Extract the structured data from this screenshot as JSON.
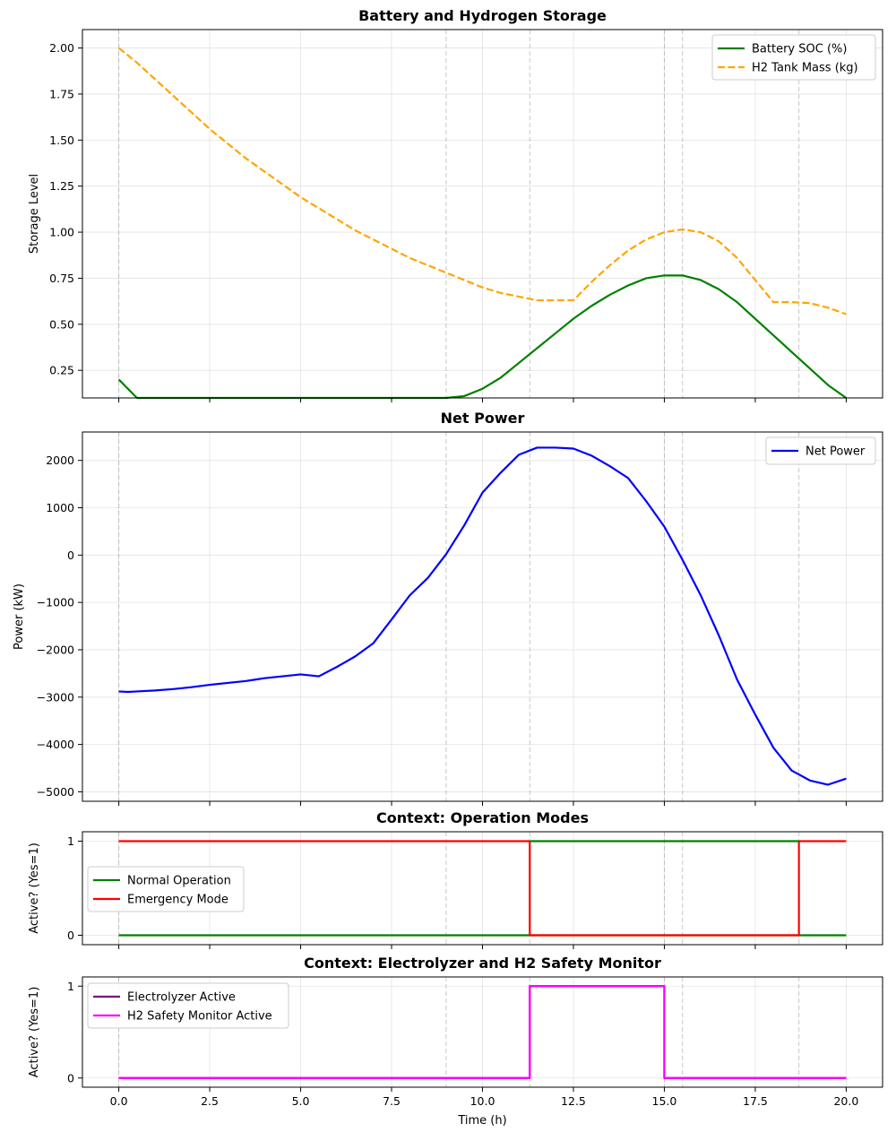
{
  "chart_data": [
    {
      "type": "line",
      "title": "Battery and Hydrogen Storage",
      "xlabel": "",
      "ylabel": "Storage Level",
      "xlim": [
        -1,
        21
      ],
      "ylim": [
        0.1,
        2.1
      ],
      "xticks": [
        0,
        2.5,
        5,
        7.5,
        10,
        12.5,
        15,
        17.5,
        20
      ],
      "yticks": [
        0.25,
        0.5,
        0.75,
        1.0,
        1.25,
        1.5,
        1.75,
        2.0
      ],
      "ytick_labels": [
        "0.25",
        "0.50",
        "0.75",
        "1.00",
        "1.25",
        "1.50",
        "1.75",
        "2.00"
      ],
      "show_xtick_labels": false,
      "grid": true,
      "legend": "top-right",
      "series": [
        {
          "name": "Battery SOC (%)",
          "color": "#008000",
          "dash": "solid",
          "x": [
            0,
            0.5,
            1,
            2,
            3,
            4,
            5,
            6,
            7,
            8,
            9,
            9.5,
            10,
            10.5,
            11,
            11.5,
            12,
            12.5,
            13,
            13.5,
            14,
            14.5,
            15,
            15.5,
            16,
            16.5,
            17,
            17.5,
            18,
            18.5,
            19,
            19.5,
            20
          ],
          "values": [
            0.2,
            0.1,
            0.1,
            0.1,
            0.1,
            0.1,
            0.1,
            0.1,
            0.1,
            0.1,
            0.1,
            0.11,
            0.15,
            0.21,
            0.29,
            0.37,
            0.45,
            0.53,
            0.6,
            0.66,
            0.71,
            0.75,
            0.765,
            0.765,
            0.74,
            0.69,
            0.62,
            0.53,
            0.44,
            0.35,
            0.26,
            0.17,
            0.1
          ]
        },
        {
          "name": "H2 Tank Mass (kg)",
          "color": "#ffa500",
          "dash": "dashed",
          "x": [
            0,
            0.5,
            1,
            1.5,
            2,
            2.5,
            3,
            3.5,
            4,
            4.5,
            5,
            5.5,
            6,
            6.5,
            7,
            7.5,
            8,
            8.5,
            9,
            9.5,
            10,
            10.5,
            11,
            11.5,
            12,
            12.5,
            13,
            13.5,
            14,
            14.5,
            15,
            15.5,
            16,
            16.5,
            17,
            17.5,
            18,
            18.5,
            19,
            19.5,
            20
          ],
          "values": [
            2.0,
            1.92,
            1.83,
            1.74,
            1.65,
            1.56,
            1.48,
            1.4,
            1.33,
            1.26,
            1.19,
            1.13,
            1.07,
            1.01,
            0.96,
            0.91,
            0.86,
            0.82,
            0.78,
            0.74,
            0.7,
            0.67,
            0.65,
            0.63,
            0.63,
            0.63,
            0.73,
            0.82,
            0.9,
            0.96,
            1.0,
            1.015,
            1.0,
            0.95,
            0.86,
            0.74,
            0.62,
            0.62,
            0.615,
            0.59,
            0.555
          ]
        }
      ]
    },
    {
      "type": "line",
      "title": "Net Power",
      "xlabel": "",
      "ylabel": "Power (kW)",
      "xlim": [
        -1,
        21
      ],
      "ylim": [
        -5200,
        2600
      ],
      "xticks": [
        0,
        2.5,
        5,
        7.5,
        10,
        12.5,
        15,
        17.5,
        20
      ],
      "yticks": [
        -5000,
        -4000,
        -3000,
        -2000,
        -1000,
        0,
        1000,
        2000
      ],
      "ytick_labels": [
        "−5000",
        "−4000",
        "−3000",
        "−2000",
        "−1000",
        "0",
        "1000",
        "2000"
      ],
      "show_xtick_labels": false,
      "grid": true,
      "legend": "top-right",
      "series": [
        {
          "name": "Net Power",
          "color": "#0000ff",
          "dash": "solid",
          "x": [
            0,
            0.25,
            0.5,
            1,
            1.5,
            2,
            2.5,
            2.75,
            3,
            3.5,
            3.75,
            4,
            4.5,
            5,
            5.5,
            6,
            6.5,
            7,
            7.5,
            8,
            8.5,
            9,
            9.5,
            10,
            10.5,
            11,
            11.5,
            12,
            12.5,
            13,
            13.5,
            14,
            14.5,
            15,
            15.5,
            16,
            16.5,
            17,
            17.5,
            18,
            18.5,
            19,
            19.5,
            20
          ],
          "values": [
            -2880,
            -2890,
            -2880,
            -2860,
            -2830,
            -2790,
            -2740,
            -2720,
            -2700,
            -2660,
            -2630,
            -2600,
            -2560,
            -2520,
            -2560,
            -2360,
            -2140,
            -1860,
            -1360,
            -850,
            -480,
            20,
            630,
            1320,
            1740,
            2120,
            2270,
            2270,
            2250,
            2100,
            1880,
            1630,
            1140,
            600,
            -100,
            -850,
            -1700,
            -2630,
            -3370,
            -4070,
            -4550,
            -4760,
            -4850,
            -4720
          ]
        }
      ]
    },
    {
      "type": "line",
      "title": "Context: Operation Modes",
      "xlabel": "",
      "ylabel": "Active? (Yes=1)",
      "xlim": [
        -1,
        21
      ],
      "ylim": [
        -0.1,
        1.1
      ],
      "xticks": [
        0,
        2.5,
        5,
        7.5,
        10,
        12.5,
        15,
        17.5,
        20
      ],
      "yticks": [
        0,
        1
      ],
      "ytick_labels": [
        "0",
        "1"
      ],
      "show_xtick_labels": false,
      "grid": true,
      "legend": "center-left",
      "series": [
        {
          "name": "Normal Operation",
          "color": "#008000",
          "dash": "solid",
          "x": [
            0,
            20
          ],
          "values": [
            0,
            0
          ]
        },
        {
          "name": "Emergency Mode",
          "color": "#ff0000",
          "dash": "solid",
          "x": [
            0,
            11.3,
            11.3,
            18.7,
            18.7,
            20
          ],
          "values": [
            1,
            1,
            0,
            0,
            1,
            1
          ]
        },
        {
          "name": "",
          "color": "#008000",
          "dash": "solid",
          "x": [
            11.3,
            18.7
          ],
          "values": [
            1,
            1
          ]
        }
      ]
    },
    {
      "type": "line",
      "title": "Context: Electrolyzer and H2 Safety Monitor",
      "xlabel": "Time (h)",
      "ylabel": "Active? (Yes=1)",
      "xlim": [
        -1,
        21
      ],
      "ylim": [
        -0.1,
        1.1
      ],
      "xticks": [
        0,
        2.5,
        5,
        7.5,
        10,
        12.5,
        15,
        17.5,
        20
      ],
      "xtick_labels": [
        "0.0",
        "2.5",
        "5.0",
        "7.5",
        "10.0",
        "12.5",
        "15.0",
        "17.5",
        "20.0"
      ],
      "yticks": [
        0,
        1
      ],
      "ytick_labels": [
        "0",
        "1"
      ],
      "show_xtick_labels": true,
      "grid": true,
      "legend": "top-left",
      "series": [
        {
          "name": "Electrolyzer Active",
          "color": "#800080",
          "dash": "solid",
          "x": [
            0,
            11.3,
            11.3,
            15,
            15,
            20
          ],
          "values": [
            0,
            0,
            1,
            1,
            0,
            0
          ]
        },
        {
          "name": "H2 Safety Monitor Active",
          "color": "#ff00ff",
          "dash": "solid",
          "x": [
            0,
            11.3,
            11.3,
            15,
            15,
            20
          ],
          "values": [
            0,
            0,
            1,
            1,
            0,
            0
          ]
        }
      ]
    }
  ],
  "event_lines_x": [
    0,
    9,
    11.3,
    15,
    15.5,
    18.7
  ]
}
